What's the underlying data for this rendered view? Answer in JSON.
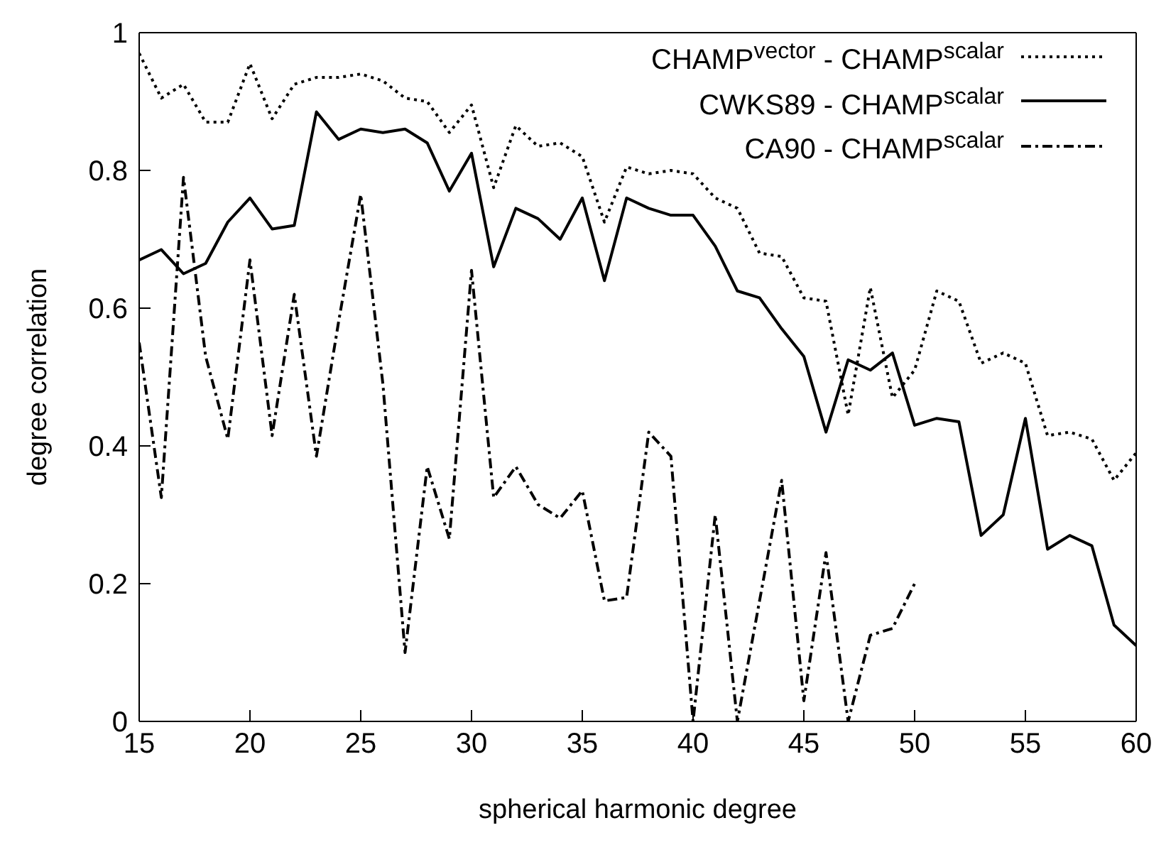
{
  "chart_data": {
    "type": "line",
    "xlabel": "spherical harmonic degree",
    "ylabel": "degree correlation",
    "x": [
      15,
      16,
      17,
      18,
      19,
      20,
      21,
      22,
      23,
      24,
      25,
      26,
      27,
      28,
      29,
      30,
      31,
      32,
      33,
      34,
      35,
      36,
      37,
      38,
      39,
      40,
      41,
      42,
      43,
      44,
      45,
      46,
      47,
      48,
      49,
      50,
      51,
      52,
      53,
      54,
      55,
      56,
      57,
      58,
      59,
      60
    ],
    "xlim": [
      15,
      60
    ],
    "xticks": [
      15,
      20,
      25,
      30,
      35,
      40,
      45,
      50,
      55,
      60
    ],
    "ylim": [
      0,
      1
    ],
    "yticks": [
      0,
      0.2,
      0.4,
      0.6,
      0.8,
      1
    ],
    "legend": "top right",
    "marker": "none",
    "series": [
      {
        "name": "CHAMP$^{vector}$ - CHAMP$^{scalar}$",
        "color": "#000000",
        "line_style": "dotted",
        "values": [
          0.97,
          0.905,
          0.925,
          0.87,
          0.87,
          0.955,
          0.875,
          0.925,
          0.935,
          0.935,
          0.94,
          0.93,
          0.905,
          0.9,
          0.855,
          0.895,
          0.775,
          0.865,
          0.835,
          0.84,
          0.82,
          0.725,
          0.805,
          0.795,
          0.8,
          0.795,
          0.76,
          0.745,
          0.68,
          0.675,
          0.615,
          0.61,
          0.445,
          0.63,
          0.47,
          0.51,
          0.625,
          0.61,
          0.52,
          0.535,
          0.52,
          0.415,
          0.42,
          0.41,
          0.35,
          0.39
        ]
      },
      {
        "name": "CWKS89 -  CHAMP$^{scalar}$",
        "color": "#000000",
        "line_style": "solid",
        "values": [
          0.67,
          0.685,
          0.65,
          0.665,
          0.725,
          0.76,
          0.715,
          0.72,
          0.885,
          0.845,
          0.86,
          0.855,
          0.86,
          0.84,
          0.77,
          0.825,
          0.66,
          0.745,
          0.73,
          0.7,
          0.76,
          0.64,
          0.76,
          0.745,
          0.735,
          0.735,
          0.69,
          0.625,
          0.615,
          0.57,
          0.53,
          0.42,
          0.525,
          0.51,
          0.535,
          0.43,
          0.44,
          0.435,
          0.27,
          0.3,
          0.44,
          0.25,
          0.27,
          0.255,
          0.14,
          0.11
        ]
      },
      {
        "name": "CA90 -  CHAMP$^{scalar}$",
        "color": "#000000",
        "line_style": "dashed",
        "values": [
          0.55,
          0.325,
          0.79,
          0.53,
          0.41,
          0.67,
          0.415,
          0.62,
          0.385,
          0.58,
          0.765,
          0.49,
          0.1,
          0.37,
          0.265,
          0.655,
          0.325,
          0.37,
          0.315,
          0.295,
          0.335,
          0.175,
          0.18,
          0.42,
          0.385,
          0,
          0.3,
          0,
          0.175,
          0.35,
          0.03,
          0.245,
          0,
          0.125,
          0.135,
          0.2,
          null,
          null,
          null,
          null,
          null,
          null,
          null,
          null,
          null,
          null
        ]
      }
    ]
  }
}
